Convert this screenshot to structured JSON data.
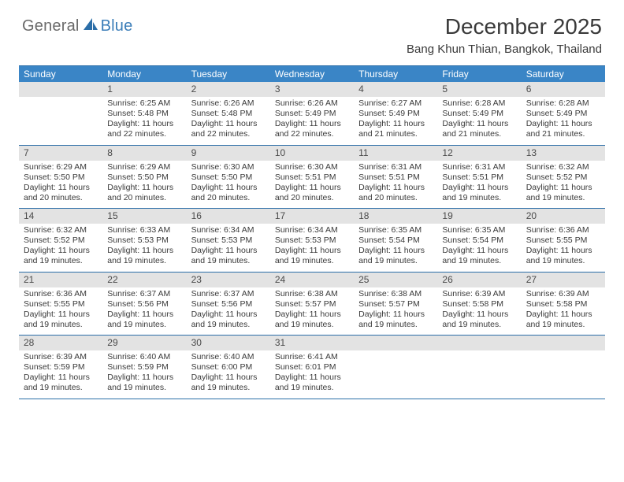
{
  "logo": {
    "general": "General",
    "blue": "Blue"
  },
  "title": "December 2025",
  "location": "Bang Khun Thian, Bangkok, Thailand",
  "colors": {
    "header_bg": "#3a85c6",
    "border": "#2b6ea8",
    "daynum_bg": "#e3e3e3",
    "logo_gray": "#6a6a6a",
    "logo_blue": "#3a7db8",
    "text": "#3a3a3a"
  },
  "weekdays": [
    "Sunday",
    "Monday",
    "Tuesday",
    "Wednesday",
    "Thursday",
    "Friday",
    "Saturday"
  ],
  "weeks": [
    [
      {
        "num": "",
        "sunrise": "",
        "sunset": "",
        "daylight": ""
      },
      {
        "num": "1",
        "sunrise": "Sunrise: 6:25 AM",
        "sunset": "Sunset: 5:48 PM",
        "daylight": "Daylight: 11 hours and 22 minutes."
      },
      {
        "num": "2",
        "sunrise": "Sunrise: 6:26 AM",
        "sunset": "Sunset: 5:48 PM",
        "daylight": "Daylight: 11 hours and 22 minutes."
      },
      {
        "num": "3",
        "sunrise": "Sunrise: 6:26 AM",
        "sunset": "Sunset: 5:49 PM",
        "daylight": "Daylight: 11 hours and 22 minutes."
      },
      {
        "num": "4",
        "sunrise": "Sunrise: 6:27 AM",
        "sunset": "Sunset: 5:49 PM",
        "daylight": "Daylight: 11 hours and 21 minutes."
      },
      {
        "num": "5",
        "sunrise": "Sunrise: 6:28 AM",
        "sunset": "Sunset: 5:49 PM",
        "daylight": "Daylight: 11 hours and 21 minutes."
      },
      {
        "num": "6",
        "sunrise": "Sunrise: 6:28 AM",
        "sunset": "Sunset: 5:49 PM",
        "daylight": "Daylight: 11 hours and 21 minutes."
      }
    ],
    [
      {
        "num": "7",
        "sunrise": "Sunrise: 6:29 AM",
        "sunset": "Sunset: 5:50 PM",
        "daylight": "Daylight: 11 hours and 20 minutes."
      },
      {
        "num": "8",
        "sunrise": "Sunrise: 6:29 AM",
        "sunset": "Sunset: 5:50 PM",
        "daylight": "Daylight: 11 hours and 20 minutes."
      },
      {
        "num": "9",
        "sunrise": "Sunrise: 6:30 AM",
        "sunset": "Sunset: 5:50 PM",
        "daylight": "Daylight: 11 hours and 20 minutes."
      },
      {
        "num": "10",
        "sunrise": "Sunrise: 6:30 AM",
        "sunset": "Sunset: 5:51 PM",
        "daylight": "Daylight: 11 hours and 20 minutes."
      },
      {
        "num": "11",
        "sunrise": "Sunrise: 6:31 AM",
        "sunset": "Sunset: 5:51 PM",
        "daylight": "Daylight: 11 hours and 20 minutes."
      },
      {
        "num": "12",
        "sunrise": "Sunrise: 6:31 AM",
        "sunset": "Sunset: 5:51 PM",
        "daylight": "Daylight: 11 hours and 19 minutes."
      },
      {
        "num": "13",
        "sunrise": "Sunrise: 6:32 AM",
        "sunset": "Sunset: 5:52 PM",
        "daylight": "Daylight: 11 hours and 19 minutes."
      }
    ],
    [
      {
        "num": "14",
        "sunrise": "Sunrise: 6:32 AM",
        "sunset": "Sunset: 5:52 PM",
        "daylight": "Daylight: 11 hours and 19 minutes."
      },
      {
        "num": "15",
        "sunrise": "Sunrise: 6:33 AM",
        "sunset": "Sunset: 5:53 PM",
        "daylight": "Daylight: 11 hours and 19 minutes."
      },
      {
        "num": "16",
        "sunrise": "Sunrise: 6:34 AM",
        "sunset": "Sunset: 5:53 PM",
        "daylight": "Daylight: 11 hours and 19 minutes."
      },
      {
        "num": "17",
        "sunrise": "Sunrise: 6:34 AM",
        "sunset": "Sunset: 5:53 PM",
        "daylight": "Daylight: 11 hours and 19 minutes."
      },
      {
        "num": "18",
        "sunrise": "Sunrise: 6:35 AM",
        "sunset": "Sunset: 5:54 PM",
        "daylight": "Daylight: 11 hours and 19 minutes."
      },
      {
        "num": "19",
        "sunrise": "Sunrise: 6:35 AM",
        "sunset": "Sunset: 5:54 PM",
        "daylight": "Daylight: 11 hours and 19 minutes."
      },
      {
        "num": "20",
        "sunrise": "Sunrise: 6:36 AM",
        "sunset": "Sunset: 5:55 PM",
        "daylight": "Daylight: 11 hours and 19 minutes."
      }
    ],
    [
      {
        "num": "21",
        "sunrise": "Sunrise: 6:36 AM",
        "sunset": "Sunset: 5:55 PM",
        "daylight": "Daylight: 11 hours and 19 minutes."
      },
      {
        "num": "22",
        "sunrise": "Sunrise: 6:37 AM",
        "sunset": "Sunset: 5:56 PM",
        "daylight": "Daylight: 11 hours and 19 minutes."
      },
      {
        "num": "23",
        "sunrise": "Sunrise: 6:37 AM",
        "sunset": "Sunset: 5:56 PM",
        "daylight": "Daylight: 11 hours and 19 minutes."
      },
      {
        "num": "24",
        "sunrise": "Sunrise: 6:38 AM",
        "sunset": "Sunset: 5:57 PM",
        "daylight": "Daylight: 11 hours and 19 minutes."
      },
      {
        "num": "25",
        "sunrise": "Sunrise: 6:38 AM",
        "sunset": "Sunset: 5:57 PM",
        "daylight": "Daylight: 11 hours and 19 minutes."
      },
      {
        "num": "26",
        "sunrise": "Sunrise: 6:39 AM",
        "sunset": "Sunset: 5:58 PM",
        "daylight": "Daylight: 11 hours and 19 minutes."
      },
      {
        "num": "27",
        "sunrise": "Sunrise: 6:39 AM",
        "sunset": "Sunset: 5:58 PM",
        "daylight": "Daylight: 11 hours and 19 minutes."
      }
    ],
    [
      {
        "num": "28",
        "sunrise": "Sunrise: 6:39 AM",
        "sunset": "Sunset: 5:59 PM",
        "daylight": "Daylight: 11 hours and 19 minutes."
      },
      {
        "num": "29",
        "sunrise": "Sunrise: 6:40 AM",
        "sunset": "Sunset: 5:59 PM",
        "daylight": "Daylight: 11 hours and 19 minutes."
      },
      {
        "num": "30",
        "sunrise": "Sunrise: 6:40 AM",
        "sunset": "Sunset: 6:00 PM",
        "daylight": "Daylight: 11 hours and 19 minutes."
      },
      {
        "num": "31",
        "sunrise": "Sunrise: 6:41 AM",
        "sunset": "Sunset: 6:01 PM",
        "daylight": "Daylight: 11 hours and 19 minutes."
      },
      {
        "num": "",
        "sunrise": "",
        "sunset": "",
        "daylight": ""
      },
      {
        "num": "",
        "sunrise": "",
        "sunset": "",
        "daylight": ""
      },
      {
        "num": "",
        "sunrise": "",
        "sunset": "",
        "daylight": ""
      }
    ]
  ]
}
